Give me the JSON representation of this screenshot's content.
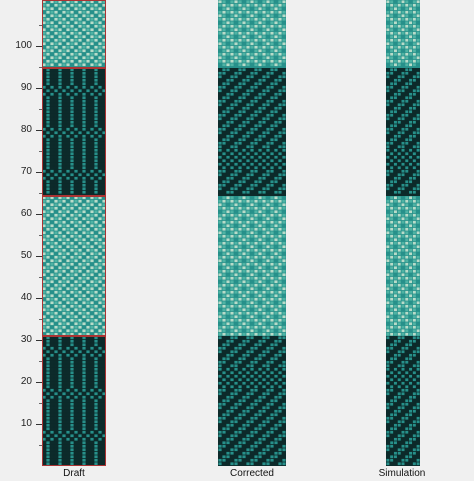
{
  "ruler": {
    "ticks": [
      {
        "label": "100"
      },
      {
        "label": "90"
      },
      {
        "label": "80"
      },
      {
        "label": "70"
      },
      {
        "label": "60"
      },
      {
        "label": "50"
      },
      {
        "label": "40"
      },
      {
        "label": "30"
      },
      {
        "label": "20"
      },
      {
        "label": "10"
      }
    ]
  },
  "panels": [
    {
      "id": "draft",
      "label": "Draft"
    },
    {
      "id": "corrected",
      "label": "Corrected"
    },
    {
      "id": "simulation",
      "label": "Simulation"
    }
  ],
  "colors": {
    "dark": "#0d2a2a",
    "teal": "#27908a",
    "light": "#b9dcc9",
    "mid": "#4fb3a4",
    "border": "#a33"
  }
}
